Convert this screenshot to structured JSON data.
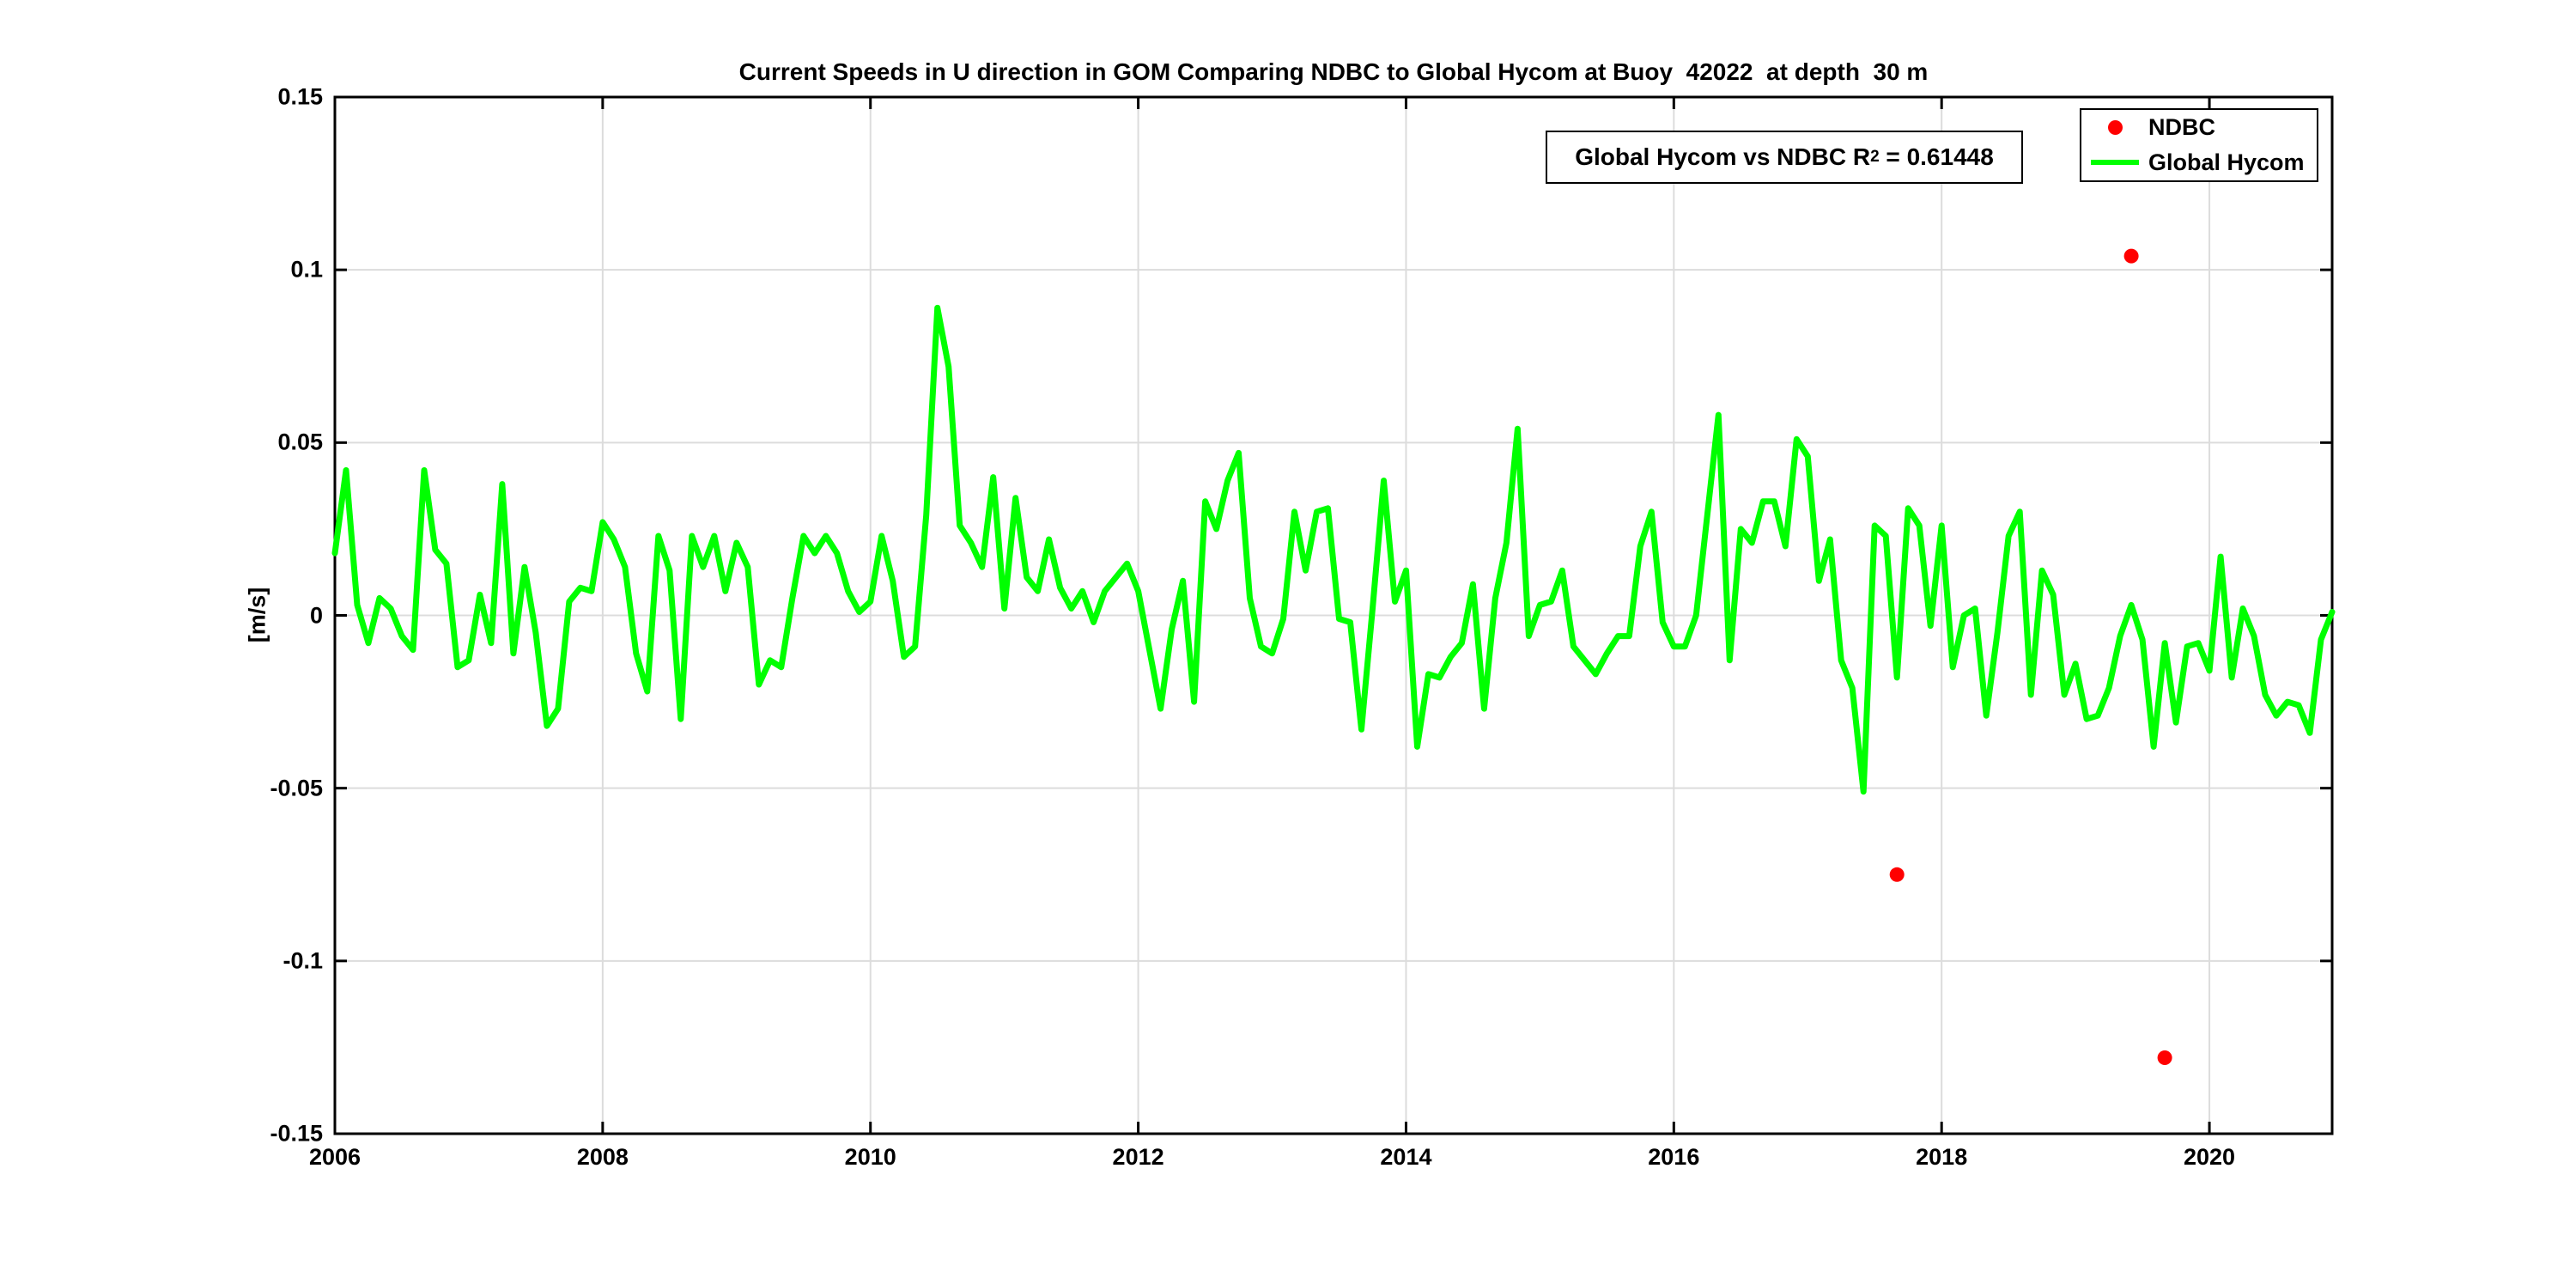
{
  "title": "Current Speeds in U direction in GOM Comparing NDBC to Global Hycom at Buoy  42022  at depth  30 m",
  "annotation": {
    "prefix": "Global Hycom vs NDBC R",
    "superscript": "2",
    "suffix": " = 0.61448"
  },
  "legend": {
    "items": [
      {
        "label": "NDBC",
        "marker": "dot",
        "color": "#ff0000"
      },
      {
        "label": "Global Hycom",
        "marker": "line",
        "color": "#00ff00"
      }
    ]
  },
  "colors": {
    "frame": "#000000",
    "grid": "#dcdcdc",
    "ndbc_red": "#ff0000",
    "hycom_green": "#00ff00",
    "background": "#ffffff"
  },
  "chart_data": {
    "type": "line",
    "title": "Current Speeds in U direction in GOM Comparing NDBC to Global Hycom at Buoy  42022  at depth  30 m",
    "xlabel": "",
    "ylabel": "[m/s]",
    "xlim": [
      2006,
      2020.9167
    ],
    "ylim": [
      -0.15,
      0.15
    ],
    "grid": true,
    "legend_position": "top-right",
    "x_ticks": [
      2006,
      2008,
      2010,
      2012,
      2014,
      2016,
      2018,
      2020
    ],
    "x_tick_labels": [
      "2006",
      "2008",
      "2010",
      "2012",
      "2014",
      "2016",
      "2018",
      "2020"
    ],
    "y_ticks": [
      0.15,
      0.1,
      0.05,
      0,
      -0.05,
      -0.1,
      -0.15
    ],
    "y_tick_labels": [
      "0.15",
      "0.1",
      "0.05",
      "0",
      "-0.05",
      "-0.1",
      "-0.15"
    ],
    "series": [
      {
        "name": "Global Hycom",
        "style": "line",
        "color": "#00ff00",
        "cadence": "monthly",
        "start": "2006-01",
        "end": "2020-12",
        "values": [
          0.018,
          0.042,
          0.003,
          -0.008,
          0.005,
          0.002,
          -0.006,
          -0.01,
          0.042,
          0.019,
          0.015,
          -0.015,
          -0.013,
          0.006,
          -0.008,
          0.038,
          -0.011,
          0.014,
          -0.005,
          -0.032,
          -0.027,
          0.004,
          0.008,
          0.007,
          0.027,
          0.022,
          0.014,
          -0.011,
          -0.022,
          0.023,
          0.013,
          -0.03,
          0.023,
          0.014,
          0.023,
          0.007,
          0.021,
          0.014,
          -0.02,
          -0.013,
          -0.015,
          0.005,
          0.023,
          0.018,
          0.023,
          0.018,
          0.007,
          0.001,
          0.004,
          0.023,
          0.01,
          -0.012,
          -0.009,
          0.029,
          0.089,
          0.072,
          0.026,
          0.021,
          0.014,
          0.04,
          0.002,
          0.034,
          0.011,
          0.007,
          0.022,
          0.008,
          0.002,
          0.007,
          -0.002,
          0.007,
          0.011,
          0.015,
          0.007,
          -0.01,
          -0.027,
          -0.004,
          0.01,
          -0.025,
          0.033,
          0.025,
          0.039,
          0.047,
          0.005,
          -0.009,
          -0.011,
          -0.001,
          0.03,
          0.013,
          0.03,
          0.031,
          -0.001,
          -0.002,
          -0.033,
          0.002,
          0.039,
          0.004,
          0.013,
          -0.038,
          -0.017,
          -0.018,
          -0.012,
          -0.008,
          0.009,
          -0.027,
          0.005,
          0.021,
          0.054,
          -0.006,
          0.003,
          0.004,
          0.013,
          -0.009,
          -0.013,
          -0.017,
          -0.011,
          -0.006,
          -0.006,
          0.02,
          0.03,
          -0.002,
          -0.009,
          -0.009,
          0.0,
          0.029,
          0.058,
          -0.013,
          0.025,
          0.021,
          0.033,
          0.033,
          0.02,
          0.051,
          0.046,
          0.01,
          0.022,
          -0.013,
          -0.021,
          -0.051,
          0.026,
          0.023,
          -0.018,
          0.031,
          0.026,
          -0.003,
          0.026,
          -0.015,
          0.0,
          0.002,
          -0.029,
          -0.005,
          0.023,
          0.03,
          -0.023,
          0.013,
          0.006,
          -0.023,
          -0.014,
          -0.03,
          -0.029,
          -0.021,
          -0.006,
          0.003,
          -0.007,
          -0.038,
          -0.008,
          -0.031,
          -0.009,
          -0.008,
          -0.016,
          0.017,
          -0.018,
          0.002,
          -0.006,
          -0.023,
          -0.029,
          -0.025,
          -0.026,
          -0.034,
          -0.007,
          0.001
        ]
      },
      {
        "name": "NDBC",
        "style": "scatter",
        "color": "#ff0000",
        "points": [
          {
            "date": "2017-09",
            "months_since_start": 140,
            "value": -0.075
          },
          {
            "date": "2019-06",
            "months_since_start": 161,
            "value": 0.104
          },
          {
            "date": "2019-09",
            "months_since_start": 164,
            "value": -0.128
          }
        ]
      }
    ],
    "annotation_text": "Global Hycom vs NDBC R2 = 0.61448",
    "r_squared": 0.61448
  }
}
